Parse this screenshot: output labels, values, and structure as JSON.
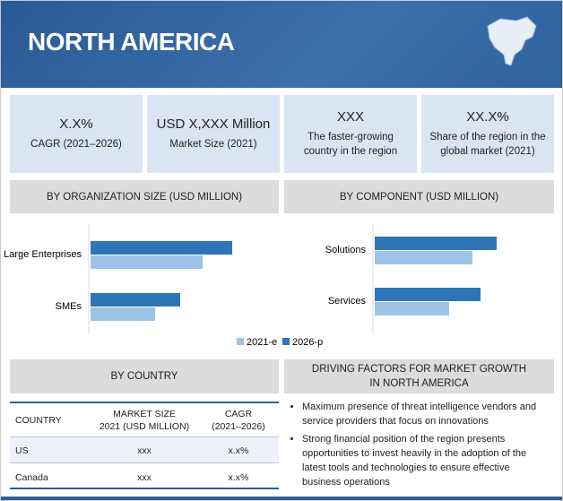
{
  "header": {
    "title": "NORTH AMERICA"
  },
  "kpis": [
    {
      "value": "X.X%",
      "label": [
        "CAGR (2021–2026)"
      ]
    },
    {
      "value": "USD X,XXX Million",
      "label": [
        "Market Size (2021)"
      ]
    },
    {
      "value": "XXX",
      "label": [
        "The faster-growing",
        "country in the region"
      ]
    },
    {
      "value": "XX.X%",
      "label": [
        "Share of the region in the",
        "global market (2021)"
      ]
    }
  ],
  "chart_data": [
    {
      "type": "bar",
      "orientation": "horizontal",
      "title": "BY ORGANIZATION SIZE (USD MILLION)",
      "categories": [
        "Large Enterprises",
        "SMEs"
      ],
      "series": [
        {
          "name": "2021-e",
          "color": "#9dc3e6",
          "values": [
            125,
            72
          ]
        },
        {
          "name": "2026-p",
          "color": "#2e75b6",
          "values": [
            158,
            100
          ]
        }
      ]
    },
    {
      "type": "bar",
      "orientation": "horizontal",
      "title": "BY COMPONENT (USD MILLION)",
      "categories": [
        "Solutions",
        "Services"
      ],
      "series": [
        {
          "name": "2021-e",
          "color": "#9dc3e6",
          "values": [
            109,
            83
          ]
        },
        {
          "name": "2026-p",
          "color": "#2e75b6",
          "values": [
            136,
            118
          ]
        }
      ]
    }
  ],
  "country_table": {
    "title": "BY COUNTRY",
    "columns": [
      "COUNTRY",
      "MARKET SIZE\n2021 (USD MILLION)",
      "CAGR\n(2021–2026)"
    ],
    "rows": [
      [
        "US",
        "xxx",
        "x.x%"
      ],
      [
        "Canada",
        "xxx",
        "x.x%"
      ]
    ]
  },
  "driving_factors": {
    "title": "DRIVING FACTORS FOR MARKET GROWTH\nIN NORTH AMERICA",
    "items": [
      "Maximum presence of threat intelligence vendors and service providers that focus on innovations",
      "Strong financial position of the region presents opportunities to invest heavily in the adoption of the latest tools and technologies to ensure effective business operations"
    ]
  }
}
